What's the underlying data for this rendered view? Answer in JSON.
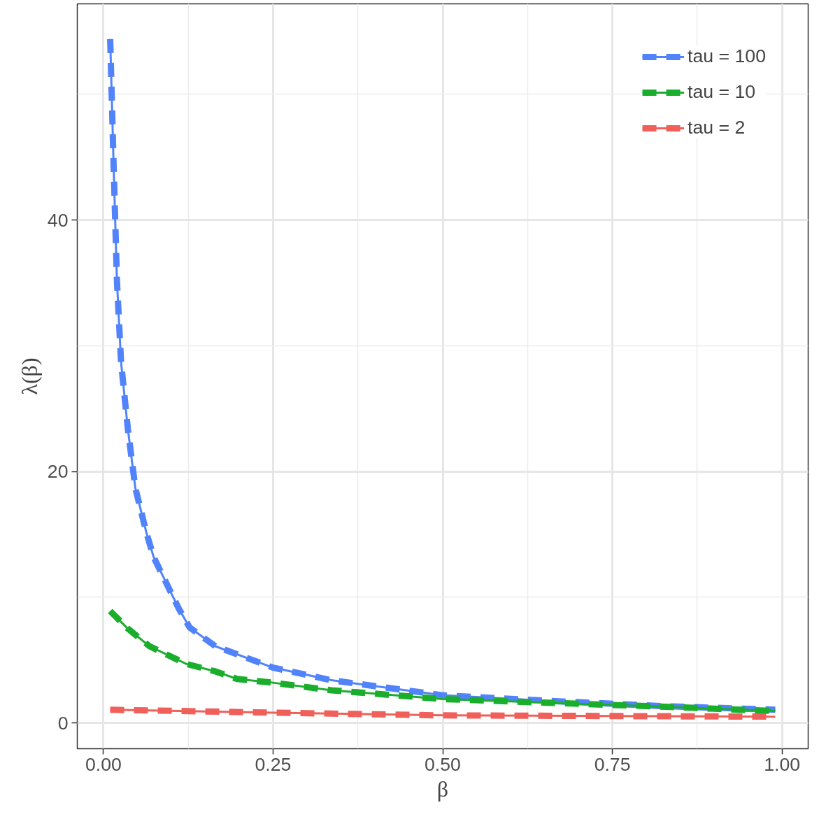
{
  "chart_data": {
    "type": "line",
    "xlabel": "β",
    "ylabel": "λ(β)",
    "xlim": [
      -0.0385,
      1.0385
    ],
    "ylim": [
      -2.05,
      57.2
    ],
    "xticks": [
      {
        "value": 0,
        "label": "0.00"
      },
      0.25,
      {
        "value": 0.5,
        "label": "0.50"
      },
      0.75,
      {
        "value": 1,
        "label": "1.00"
      }
    ],
    "yticks": [
      0,
      20,
      40
    ],
    "grid": true,
    "legend": "top right",
    "series": [
      {
        "color": "#5183fa",
        "line_style": "dashed",
        "x": [
          0.01,
          0.015,
          0.02,
          0.026,
          0.036,
          0.047,
          0.063,
          0.074,
          0.111,
          0.127,
          0.165,
          0.25,
          0.336,
          0.5,
          0.66,
          0.82,
          0.99
        ],
        "values": [
          54.4,
          44.4,
          35.1,
          28.7,
          23.4,
          18.7,
          15.2,
          13.2,
          9.1,
          7.6,
          6.1,
          4.4,
          3.4,
          2.2,
          1.75,
          1.35,
          1.05
        ]
      },
      {
        "name": "tau = 100",
        "color": "#5183fa",
        "line_style": "solid",
        "x": [
          0.01,
          0.015,
          0.02,
          0.026,
          0.036,
          0.047,
          0.063,
          0.074,
          0.111,
          0.127,
          0.165,
          0.25,
          0.336,
          0.5,
          0.66,
          0.82,
          0.99
        ],
        "values": [
          54.4,
          44.4,
          35.1,
          28.7,
          23.4,
          18.7,
          15.2,
          13.2,
          9.1,
          7.6,
          6.1,
          4.4,
          3.4,
          2.2,
          1.75,
          1.35,
          1.05
        ]
      },
      {
        "color": "#1aae2c",
        "line_style": "dashed",
        "x": [
          0.01,
          0.036,
          0.068,
          0.122,
          0.165,
          0.197,
          0.25,
          0.336,
          0.5,
          0.66,
          0.82,
          0.99
        ],
        "values": [
          8.9,
          7.5,
          6.1,
          4.7,
          4.1,
          3.5,
          3.2,
          2.6,
          1.9,
          1.6,
          1.3,
          0.95
        ]
      },
      {
        "name": "tau = 10",
        "color": "#1aae2c",
        "line_style": "solid",
        "x": [
          0.01,
          0.036,
          0.068,
          0.122,
          0.165,
          0.197,
          0.25,
          0.336,
          0.5,
          0.66,
          0.82,
          0.99
        ],
        "values": [
          8.9,
          7.5,
          6.1,
          4.7,
          4.1,
          3.5,
          3.2,
          2.6,
          1.9,
          1.6,
          1.3,
          0.95
        ]
      },
      {
        "color": "#f0605a",
        "line_style": "dashed",
        "x": [
          0.01,
          0.25,
          0.5,
          0.75,
          0.99
        ],
        "values": [
          1.05,
          0.82,
          0.6,
          0.55,
          0.5
        ]
      },
      {
        "name": "tau = 2",
        "color": "#f0605a",
        "line_style": "solid",
        "x": [
          0.01,
          0.25,
          0.5,
          0.75,
          0.99
        ],
        "values": [
          1.05,
          0.82,
          0.6,
          0.55,
          0.5
        ]
      }
    ]
  }
}
